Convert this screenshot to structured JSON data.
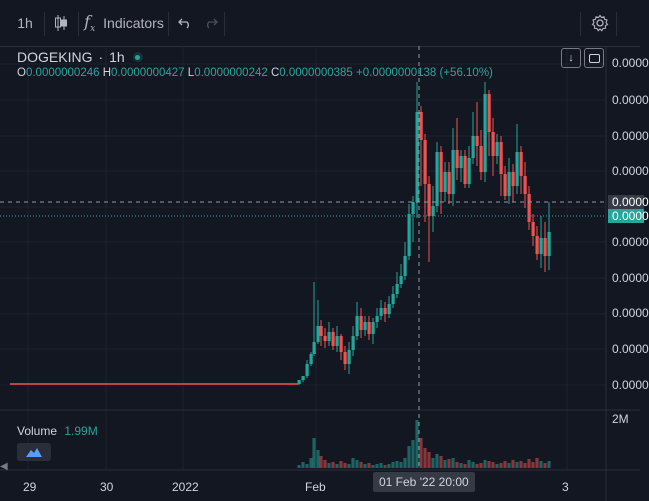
{
  "toolbar": {
    "interval": "1h",
    "indicators_label": "Indicators"
  },
  "legend": {
    "symbol": "DOGEKING",
    "sep": "·",
    "interval": "1h",
    "o_key": "O",
    "o_val": "0.0000000246",
    "h_key": "H",
    "h_val": "0.0000000427",
    "l_key": "L",
    "l_val": "0.0000000242",
    "c_key": "C",
    "c_val": "0.0000000385",
    "change": "+0.0000000138 (+56.10%)",
    "up_color": "#26a69a",
    "down_color": "#ef5350"
  },
  "volume": {
    "label": "Volume",
    "value": "1.99M",
    "axis_label": "2M"
  },
  "price_axis": {
    "labels": [
      "0.0000",
      "0.0000",
      "0.0000",
      "0.0000",
      "0.0000",
      "0.0000",
      "0.0000",
      "0.0000",
      "0.0000",
      "0.0000"
    ],
    "crosshair_tag": "0.0000",
    "last_tag": "0.0000"
  },
  "time_axis": {
    "labels": [
      "29",
      "30",
      "2022",
      "Feb",
      "3"
    ],
    "crosshair_time": "01 Feb '22  20:00"
  }
}
